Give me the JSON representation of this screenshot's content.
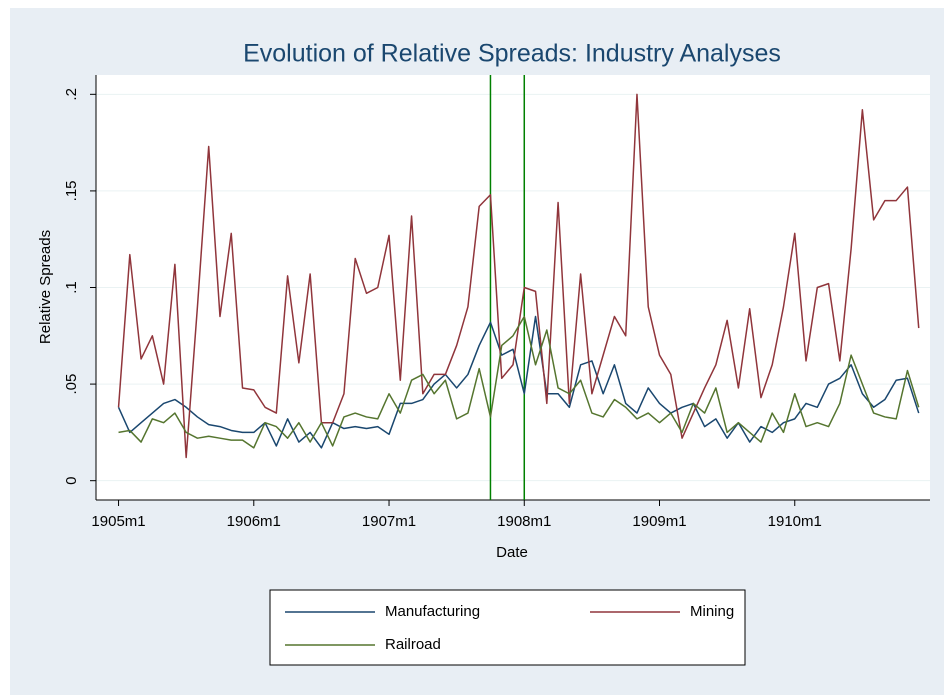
{
  "chart_data": {
    "type": "line",
    "title": "Evolution of Relative Spreads: Industry Analyses",
    "x_label": "Date",
    "y_label": "Relative Spreads",
    "x": [
      -660,
      -659,
      -658,
      -657,
      -656,
      -655,
      -654,
      -653,
      -652,
      -651,
      -650,
      -649,
      -648,
      -647,
      -646,
      -645,
      -644,
      -643,
      -642,
      -641,
      -640,
      -639,
      -638,
      -637,
      -636,
      -635,
      -634,
      -633,
      -632,
      -631,
      -630,
      -629,
      -628,
      -627,
      -626,
      -625,
      -624,
      -623,
      -622,
      -621,
      -620,
      -619,
      -618,
      -617,
      -616,
      -615,
      -614,
      -613,
      -612,
      -611,
      -610,
      -609,
      -608,
      -607,
      -606,
      -605,
      -604,
      -603,
      -602,
      -601,
      -600,
      -599,
      -598,
      -597,
      -596,
      -595,
      -594,
      -593,
      -592,
      -591,
      -590,
      -589
    ],
    "series": [
      {
        "name": "Manufacturing",
        "color": "#1a476f",
        "values": [
          0.038,
          0.025,
          0.03,
          0.035,
          0.04,
          0.042,
          0.038,
          0.033,
          0.029,
          0.028,
          0.026,
          0.025,
          0.025,
          0.03,
          0.018,
          0.032,
          0.02,
          0.025,
          0.017,
          0.03,
          0.027,
          0.028,
          0.027,
          0.028,
          0.024,
          0.04,
          0.04,
          0.042,
          0.05,
          0.055,
          0.048,
          0.055,
          0.07,
          0.082,
          0.065,
          0.068,
          0.045,
          0.085,
          0.045,
          0.045,
          0.038,
          0.06,
          0.062,
          0.045,
          0.06,
          0.04,
          0.035,
          0.048,
          0.04,
          0.035,
          0.038,
          0.04,
          0.028,
          0.032,
          0.022,
          0.03,
          0.02,
          0.028,
          0.025,
          0.03,
          0.032,
          0.04,
          0.038,
          0.05,
          0.053,
          0.06,
          0.045,
          0.038,
          0.042,
          0.052,
          0.053,
          0.035
        ]
      },
      {
        "name": "Mining",
        "color": "#90353b",
        "values": [
          0.038,
          0.117,
          0.063,
          0.075,
          0.05,
          0.112,
          0.012,
          0.09,
          0.173,
          0.085,
          0.128,
          0.048,
          0.047,
          0.038,
          0.035,
          0.106,
          0.061,
          0.107,
          0.03,
          0.03,
          0.045,
          0.115,
          0.097,
          0.1,
          0.127,
          0.052,
          0.137,
          0.045,
          0.055,
          0.055,
          0.07,
          0.09,
          0.142,
          0.148,
          0.053,
          0.06,
          0.1,
          0.098,
          0.04,
          0.144,
          0.04,
          0.107,
          0.045,
          0.065,
          0.085,
          0.075,
          0.2,
          0.09,
          0.065,
          0.055,
          0.022,
          0.035,
          0.048,
          0.06,
          0.083,
          0.048,
          0.089,
          0.043,
          0.06,
          0.09,
          0.128,
          0.062,
          0.1,
          0.102,
          0.062,
          0.12,
          0.192,
          0.135,
          0.145,
          0.145,
          0.152,
          0.079
        ]
      },
      {
        "name": "Railroad",
        "color": "#55752f",
        "values": [
          0.025,
          0.026,
          0.02,
          0.032,
          0.03,
          0.035,
          0.025,
          0.022,
          0.023,
          0.022,
          0.021,
          0.021,
          0.017,
          0.03,
          0.028,
          0.022,
          0.03,
          0.02,
          0.03,
          0.018,
          0.033,
          0.035,
          0.033,
          0.032,
          0.045,
          0.035,
          0.052,
          0.055,
          0.045,
          0.052,
          0.032,
          0.035,
          0.058,
          0.033,
          0.07,
          0.075,
          0.085,
          0.06,
          0.078,
          0.048,
          0.045,
          0.052,
          0.035,
          0.033,
          0.042,
          0.038,
          0.032,
          0.035,
          0.03,
          0.035,
          0.025,
          0.04,
          0.035,
          0.048,
          0.025,
          0.03,
          0.025,
          0.02,
          0.035,
          0.025,
          0.045,
          0.028,
          0.03,
          0.028,
          0.04,
          0.065,
          0.05,
          0.035,
          0.033,
          0.032,
          0.057,
          0.038
        ]
      }
    ],
    "vlines": [
      -627,
      -624
    ],
    "vline_color": "#008000",
    "xlim": [
      -662,
      -588
    ],
    "ylim": [
      -0.01,
      0.21
    ],
    "xticks": [
      {
        "value": -660,
        "label": "1905m1"
      },
      {
        "value": -648,
        "label": "1906m1"
      },
      {
        "value": -636,
        "label": "1907m1"
      },
      {
        "value": -624,
        "label": "1908m1"
      },
      {
        "value": -612,
        "label": "1909m1"
      },
      {
        "value": -600,
        "label": "1910m1"
      }
    ],
    "yticks": [
      0,
      {
        "value": 0.05,
        "label": ".05"
      },
      {
        "value": 0.1,
        "label": ".1"
      },
      {
        "value": 0.15,
        "label": ".15"
      },
      {
        "value": 0.2,
        "label": ".2"
      }
    ],
    "grid": true,
    "legend": "bottom"
  }
}
